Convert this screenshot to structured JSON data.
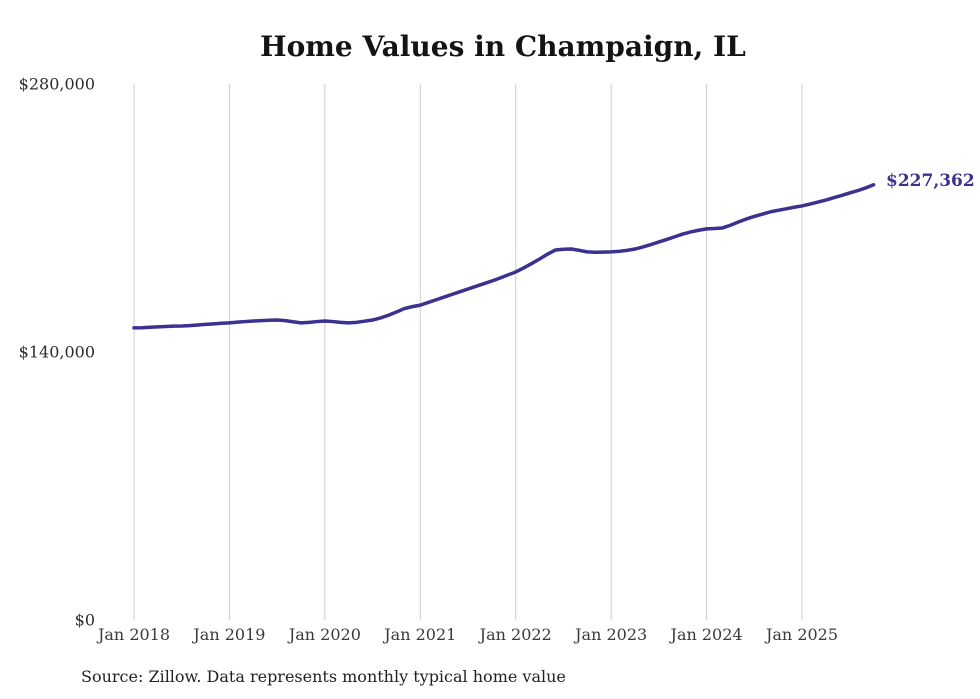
{
  "page": {
    "background_color": "#ffffff"
  },
  "chart": {
    "title": "Home Values in Champaign, IL",
    "end_label": "$227,362",
    "source_note": "Source: Zillow. Data represents monthly typical home value",
    "colors": {
      "line": "#3a3191",
      "end_label": "#3a3191",
      "grid": "#cccccc",
      "title": "#141414",
      "axis_text": "#3a3a3a"
    }
  },
  "chart_data": {
    "type": "line",
    "title": "Home Values in Champaign, IL",
    "series_name": "Typical home value (monthly, Zillow)",
    "xlabel": "",
    "ylabel": "",
    "ylim": [
      0,
      280000
    ],
    "grid": "vertical-only",
    "legend_position": "none",
    "end_annotation": "$227,362",
    "source": "Source: Zillow. Data represents monthly typical home value",
    "x_tick_labels": [
      "Jan 2018",
      "Jan 2019",
      "Jan 2020",
      "Jan 2021",
      "Jan 2022",
      "Jan 2023",
      "Jan 2024",
      "Jan 2025"
    ],
    "y_ticks": [
      {
        "label": "$280,000",
        "value": 280000
      },
      {
        "label": "$140,000",
        "value": 140000
      },
      {
        "label": "$0",
        "value": 0
      }
    ],
    "x": [
      "2018-01",
      "2018-02",
      "2018-03",
      "2018-04",
      "2018-05",
      "2018-06",
      "2018-07",
      "2018-08",
      "2018-09",
      "2018-10",
      "2018-11",
      "2018-12",
      "2019-01",
      "2019-02",
      "2019-03",
      "2019-04",
      "2019-05",
      "2019-06",
      "2019-07",
      "2019-08",
      "2019-09",
      "2019-10",
      "2019-11",
      "2019-12",
      "2020-01",
      "2020-02",
      "2020-03",
      "2020-04",
      "2020-05",
      "2020-06",
      "2020-07",
      "2020-08",
      "2020-09",
      "2020-10",
      "2020-11",
      "2020-12",
      "2021-01",
      "2021-02",
      "2021-03",
      "2021-04",
      "2021-05",
      "2021-06",
      "2021-07",
      "2021-08",
      "2021-09",
      "2021-10",
      "2021-11",
      "2021-12",
      "2022-01",
      "2022-02",
      "2022-03",
      "2022-04",
      "2022-05",
      "2022-06",
      "2022-07",
      "2022-08",
      "2022-09",
      "2022-10",
      "2022-11",
      "2022-12",
      "2023-01",
      "2023-02",
      "2023-03",
      "2023-04",
      "2023-05",
      "2023-06",
      "2023-07",
      "2023-08",
      "2023-09",
      "2023-10",
      "2023-11",
      "2023-12",
      "2024-01",
      "2024-02",
      "2024-03",
      "2024-04",
      "2024-05",
      "2024-06",
      "2024-07",
      "2024-08",
      "2024-09",
      "2024-10",
      "2024-11",
      "2024-12",
      "2025-01",
      "2025-02",
      "2025-03",
      "2025-04",
      "2025-05",
      "2025-06",
      "2025-07",
      "2025-08",
      "2025-09",
      "2025-10"
    ],
    "values": [
      152600,
      152700,
      152900,
      153100,
      153300,
      153500,
      153600,
      153800,
      154100,
      154400,
      154700,
      155000,
      155200,
      155600,
      155900,
      156200,
      156400,
      156600,
      156700,
      156400,
      155800,
      155200,
      155500,
      155900,
      156200,
      155900,
      155500,
      155200,
      155500,
      156100,
      156700,
      157800,
      159200,
      160900,
      162700,
      163700,
      164500,
      165900,
      167300,
      168700,
      170100,
      171500,
      172900,
      174300,
      175700,
      177100,
      178600,
      180200,
      181800,
      183900,
      186200,
      188600,
      191100,
      193300,
      193700,
      193800,
      193100,
      192300,
      192100,
      192200,
      192300,
      192600,
      193100,
      193800,
      194900,
      196100,
      197500,
      198800,
      200200,
      201600,
      202700,
      203600,
      204300,
      204500,
      204800,
      206200,
      207900,
      209500,
      210800,
      212000,
      213200,
      214000,
      214800,
      215600,
      216300,
      217300,
      218300,
      219400,
      220600,
      221800,
      223100,
      224300,
      225700,
      227362
    ]
  }
}
